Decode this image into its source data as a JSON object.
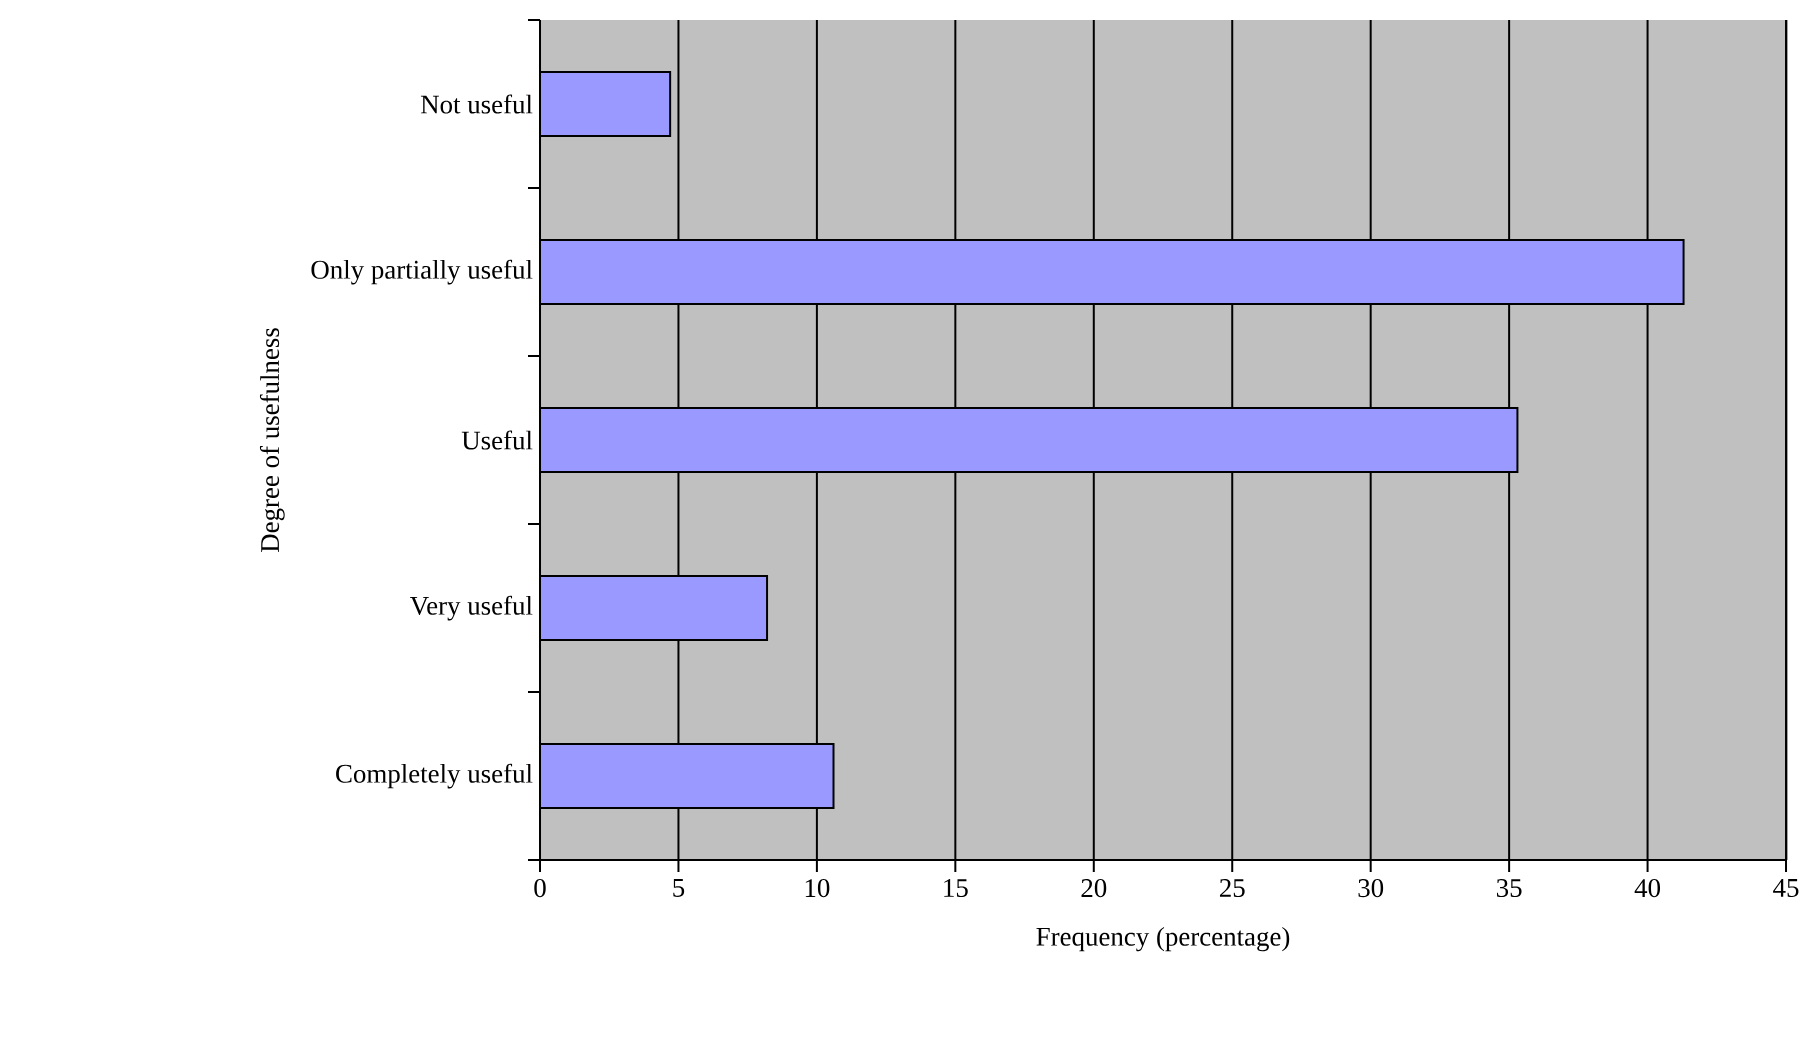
{
  "chart_data": {
    "type": "bar",
    "orientation": "horizontal",
    "xlabel": "Frequency (percentage)",
    "ylabel": "Degree of usefulness",
    "categories": [
      "Not useful",
      "Only partially useful",
      "Useful",
      "Very useful",
      "Completely useful"
    ],
    "values": [
      4.7,
      41.3,
      35.3,
      8.2,
      10.6
    ],
    "color": "#9999ff",
    "xlim": [
      0,
      45
    ],
    "xticks": [
      0,
      5,
      10,
      15,
      20,
      25,
      30,
      35,
      40,
      45
    ],
    "grid": "x"
  }
}
